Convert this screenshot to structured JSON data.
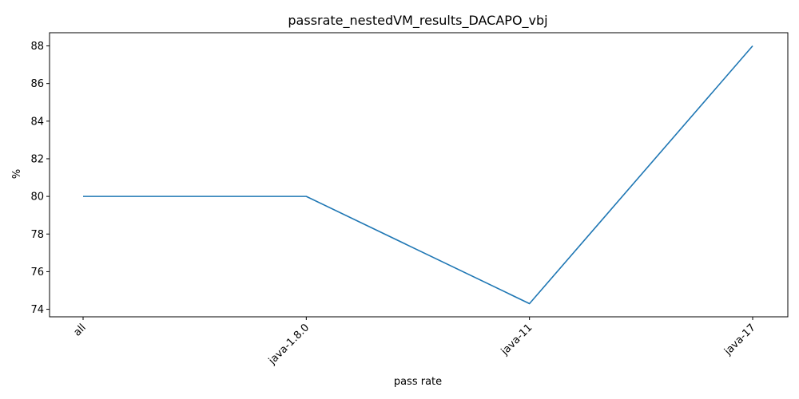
{
  "chart_data": {
    "type": "line",
    "title": "passrate_nestedVM_results_DACAPO_vbj",
    "xlabel": "pass rate",
    "ylabel": "%",
    "categories": [
      "all",
      "java-1.8.0",
      "java-11",
      "java-17"
    ],
    "series": [
      {
        "values": [
          80,
          80,
          74.3,
          88
        ],
        "color": "#1f77b4"
      }
    ],
    "ylim": [
      73.6,
      88.7
    ],
    "yticks": [
      74,
      76,
      78,
      80,
      82,
      84,
      86,
      88
    ],
    "grid": false,
    "x_tick_rotation_deg": 45
  }
}
